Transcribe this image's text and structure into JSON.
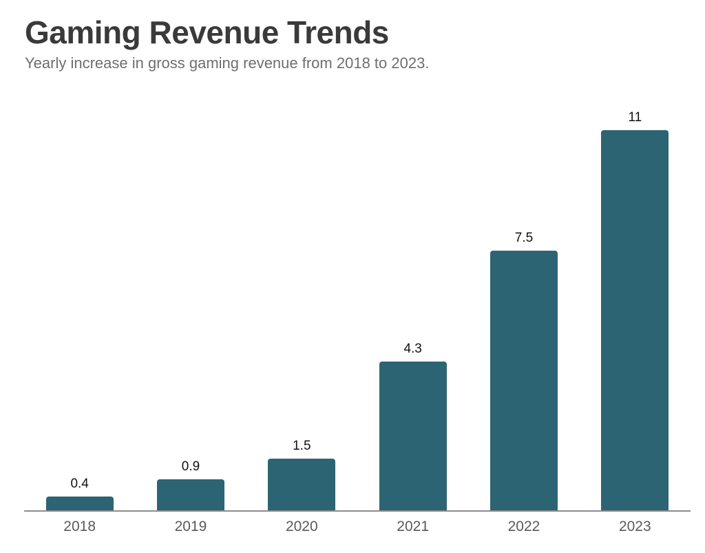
{
  "header": {
    "title": "Gaming Revenue Trends",
    "subtitle": "Yearly increase in gross gaming revenue from 2018 to 2023."
  },
  "chart_data": {
    "type": "bar",
    "title": "Gaming Revenue Trends",
    "subtitle": "Yearly increase in gross gaming revenue from 2018 to 2023.",
    "categories": [
      "2018",
      "2019",
      "2020",
      "2021",
      "2022",
      "2023"
    ],
    "values": [
      0.4,
      0.9,
      1.5,
      4.3,
      7.5,
      11
    ],
    "value_labels": [
      "0.4",
      "0.9",
      "1.5",
      "4.3",
      "7.5",
      "11"
    ],
    "xlabel": "",
    "ylabel": "",
    "ylim": [
      0,
      12.6
    ],
    "grid": false,
    "legend": false,
    "bar_color": "#2d6473",
    "axis_color": "#8c8c8c",
    "value_label_color": "#111111",
    "tick_label_color": "#595959"
  },
  "colors": {
    "background": "#ffffff",
    "title": "#3a3a3a",
    "subtitle": "#6e6e6e"
  }
}
